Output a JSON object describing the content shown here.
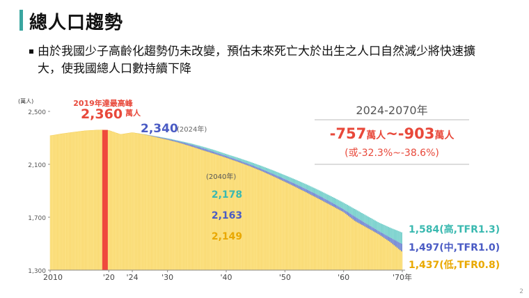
{
  "slide": {
    "title": "總人口趨勢",
    "bullet": "由於我國少子高齡化趨勢仍未改變，預估未來死亡大於出生之人口自然減少將快速擴大，使我國總人口數持續下降",
    "page_number": "2"
  },
  "colors": {
    "bar_low": "#fde48a",
    "bar_low_edge": "#f2c94c",
    "band_mid": "#7b8fd6",
    "band_high": "#7fd3cf",
    "peak_bar": "#ef4a3c",
    "red_text": "#e8483a",
    "blue_text": "#4a5bc4",
    "teal_text": "#3ab9b0",
    "gold_text": "#e9a800",
    "axis": "#888888"
  },
  "chart_data": {
    "type": "bar",
    "y_unit_label": "(萬人)",
    "yticks": [
      1300,
      1700,
      2100,
      2500
    ],
    "ytick_labels": [
      "1,300",
      "1,700",
      "2,100",
      "2,500"
    ],
    "ylim": [
      1300,
      2500
    ],
    "xlim": [
      2010,
      2070
    ],
    "xticks": [
      2010,
      2020,
      2024,
      2030,
      2040,
      2050,
      2060,
      2070
    ],
    "xtick_labels": [
      "2010",
      "'20",
      "'24",
      "'30",
      "'40",
      "'50",
      "'60",
      "'70年"
    ],
    "series": [
      {
        "name": "低",
        "years": [
          2010,
          2012,
          2014,
          2016,
          2018,
          2019,
          2020,
          2022,
          2024,
          2026,
          2028,
          2030,
          2032,
          2034,
          2036,
          2038,
          2040,
          2042,
          2044,
          2046,
          2048,
          2050,
          2052,
          2054,
          2056,
          2058,
          2060,
          2062,
          2064,
          2066,
          2068,
          2070
        ],
        "values": [
          2316,
          2331,
          2343,
          2354,
          2359,
          2360,
          2356,
          2326,
          2340,
          2325,
          2305,
          2285,
          2262,
          2235,
          2206,
          2178,
          2149,
          2118,
          2085,
          2049,
          2009,
          1967,
          1924,
          1879,
          1833,
          1786,
          1738,
          1669,
          1620,
          1570,
          1510,
          1437
        ]
      },
      {
        "name": "中",
        "years": [
          2024,
          2026,
          2028,
          2030,
          2032,
          2034,
          2036,
          2038,
          2040,
          2042,
          2044,
          2046,
          2048,
          2050,
          2052,
          2054,
          2056,
          2058,
          2060,
          2062,
          2064,
          2066,
          2068,
          2070
        ],
        "values": [
          2340,
          2327,
          2311,
          2293,
          2273,
          2250,
          2223,
          2193,
          2163,
          2132,
          2100,
          2065,
          2027,
          1988,
          1947,
          1904,
          1859,
          1811,
          1760,
          1702,
          1648,
          1595,
          1545,
          1497
        ]
      },
      {
        "name": "高",
        "years": [
          2024,
          2026,
          2028,
          2030,
          2032,
          2034,
          2036,
          2038,
          2040,
          2042,
          2044,
          2046,
          2048,
          2050,
          2052,
          2054,
          2056,
          2058,
          2060,
          2062,
          2064,
          2066,
          2068,
          2070
        ],
        "values": [
          2340,
          2328,
          2313,
          2297,
          2278,
          2258,
          2234,
          2208,
          2178,
          2150,
          2120,
          2088,
          2054,
          2018,
          1981,
          1942,
          1900,
          1856,
          1810,
          1760,
          1710,
          1660,
          1620,
          1584
        ]
      }
    ],
    "peak": {
      "year": 2019,
      "value": 2360,
      "caption": "2019年達最高峰",
      "value_label": "2,360",
      "unit": "萬人"
    },
    "current": {
      "year": 2024,
      "value_label": "2,340",
      "year_label": "(2024年)"
    },
    "mid_year": {
      "year_label": "(2040年)",
      "labels": [
        {
          "series": "高",
          "text": "2,178"
        },
        {
          "series": "中",
          "text": "2,163"
        },
        {
          "series": "低",
          "text": "2,149"
        }
      ]
    },
    "end_labels": [
      {
        "series": "高",
        "text": "1,584(高,TFR1.3)"
      },
      {
        "series": "中",
        "text": "1,497(中,TFR1.0)"
      },
      {
        "series": "低",
        "text": "1,437(低,TFR0.8)"
      }
    ],
    "summary": {
      "range": "2024-2070年",
      "change_a": "-757",
      "change_b": "-903",
      "unit": "萬人",
      "separator": "~",
      "pct": "(或-32.3%~-38.6%)"
    }
  }
}
